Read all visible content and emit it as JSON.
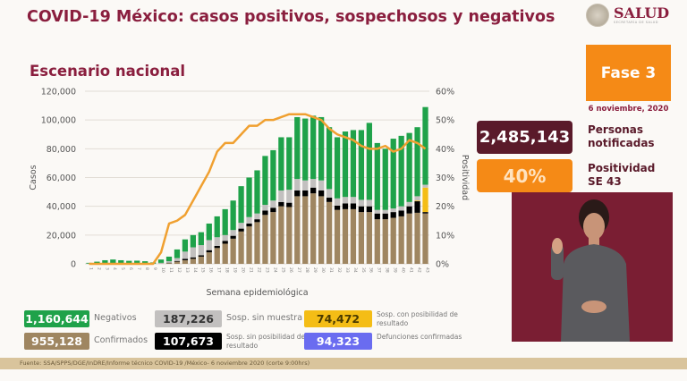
{
  "header": {
    "title": "COVID-19 México: casos positivos, sospechosos y negativos",
    "subtitle": "Escenario nacional",
    "logo": "SALUD",
    "logo_sub": "SECRETARÍA DE SALUD"
  },
  "side": {
    "fase": "Fase 3",
    "date": "6 noviembre, 2020",
    "personas_value": "2,485,143",
    "personas_label1": "Personas",
    "personas_label2": "notificadas",
    "positividad_value": "40%",
    "positividad_label1": "Positividad",
    "positividad_label2": "SE 43"
  },
  "legend": [
    {
      "value": "1,160,644",
      "label": "Negativos",
      "color": "#1fa24a"
    },
    {
      "value": "187,226",
      "label": "Sosp. sin muestra",
      "color": "#c2c0bf",
      "text": "#333"
    },
    {
      "value": "74,472",
      "label": "Sosp. con posibilidad de resultado",
      "color": "#f4bd16",
      "text": "#4a3a00"
    },
    {
      "value": "955,128",
      "label": "Confirmados",
      "color": "#9f8661"
    },
    {
      "value": "107,673",
      "label": "Sosp. sin posibilidad de resultado",
      "color": "#000000"
    },
    {
      "value": "94,323",
      "label": "Defunciones confirmadas",
      "color": "#6a6cf0"
    }
  ],
  "footer": "Fuente: SSA/SPPS/DGE/InDRE/Informe técnico COVID-19 /México- 6 noviembre 2020 (corte 9:00hrs)",
  "chart_data": {
    "type": "bar",
    "stacked": true,
    "xlabel": "Semana epidemiológica",
    "ylabel": "Casos",
    "y2label": "Positividad",
    "ylim": [
      0,
      120000
    ],
    "y2lim": [
      0,
      60
    ],
    "yticks": [
      "0",
      "20,000",
      "40,000",
      "60,000",
      "80,000",
      "100,000",
      "120,000"
    ],
    "y2ticks": [
      "0%",
      "10%",
      "20%",
      "30%",
      "40%",
      "50%",
      "60%"
    ],
    "grid": true,
    "categories": [
      "1",
      "2",
      "3",
      "4",
      "5",
      "6",
      "7",
      "8",
      "9",
      "10",
      "11",
      "12",
      "13",
      "14",
      "15",
      "16",
      "17",
      "18",
      "19",
      "20",
      "21",
      "22",
      "23",
      "24",
      "25",
      "26",
      "27",
      "28",
      "29",
      "30",
      "31",
      "32",
      "33",
      "34",
      "35",
      "36",
      "37",
      "38",
      "39",
      "40",
      "41",
      "42",
      "43"
    ],
    "series": [
      {
        "name": "Confirmados",
        "color": "#9f8661",
        "values": [
          100,
          100,
          100,
          100,
          100,
          0,
          0,
          0,
          100,
          200,
          500,
          1500,
          2500,
          3500,
          5000,
          8000,
          11000,
          14000,
          17500,
          22500,
          26000,
          29000,
          34000,
          36000,
          40000,
          39500,
          47000,
          47000,
          49000,
          47000,
          43000,
          37500,
          38000,
          38000,
          36000,
          36000,
          31000,
          31000,
          32000,
          33000,
          35000,
          35500,
          35000
        ]
      },
      {
        "name": "Sosp. sin posibilidad de resultado",
        "color": "#000000",
        "values": [
          0,
          0,
          0,
          0,
          0,
          0,
          0,
          0,
          0,
          0,
          300,
          500,
          1000,
          1000,
          1000,
          1500,
          1500,
          2000,
          2000,
          2000,
          2000,
          2000,
          3000,
          3000,
          3000,
          3000,
          4000,
          4000,
          4000,
          4000,
          3000,
          3000,
          4000,
          4000,
          4000,
          4000,
          4000,
          4000,
          4000,
          4000,
          5000,
          8000,
          1000
        ]
      },
      {
        "name": "Sosp. con posibilidad de resultado",
        "color": "#f4bd16",
        "values": [
          0,
          0,
          0,
          0,
          0,
          0,
          0,
          0,
          0,
          0,
          0,
          0,
          0,
          0,
          0,
          0,
          0,
          0,
          0,
          0,
          0,
          0,
          0,
          0,
          0,
          0,
          0,
          0,
          0,
          0,
          0,
          0,
          0,
          0,
          0,
          0,
          0,
          0,
          0,
          0,
          0,
          500,
          17000
        ]
      },
      {
        "name": "Sosp. sin muestra",
        "color": "#c2c0bf",
        "values": [
          100,
          200,
          200,
          300,
          300,
          0,
          0,
          0,
          0,
          500,
          1000,
          2000,
          5000,
          7000,
          7000,
          7000,
          6000,
          4000,
          4000,
          4000,
          4500,
          4000,
          4000,
          5000,
          8000,
          9000,
          8000,
          7000,
          6000,
          7000,
          6000,
          5000,
          4500,
          4500,
          4500,
          4500,
          2500,
          2500,
          2500,
          3000,
          3000,
          3000,
          2000
        ]
      },
      {
        "name": "Negativos",
        "color": "#1fa24a",
        "values": [
          500,
          1200,
          2200,
          2600,
          2100,
          2100,
          2200,
          1800,
          900,
          2300,
          3200,
          6000,
          8500,
          8500,
          9000,
          11500,
          14500,
          18000,
          20500,
          25500,
          27500,
          30000,
          34000,
          35000,
          37000,
          36500,
          43000,
          43000,
          44000,
          44000,
          43000,
          42500,
          45500,
          46500,
          48500,
          53500,
          46500,
          42500,
          48500,
          49000,
          48000,
          48000,
          54000
        ]
      }
    ],
    "line": {
      "name": "Positividad",
      "color": "#f0a030",
      "values": [
        0,
        0,
        0,
        0,
        0,
        0,
        0,
        0,
        0,
        4,
        14,
        15,
        17,
        22,
        27,
        32,
        39,
        42,
        42,
        45,
        48,
        48,
        50,
        50,
        51,
        52,
        52,
        52,
        51,
        50,
        47,
        45,
        44,
        43,
        41,
        40,
        40,
        41,
        39,
        40,
        43,
        42,
        40
      ]
    }
  }
}
